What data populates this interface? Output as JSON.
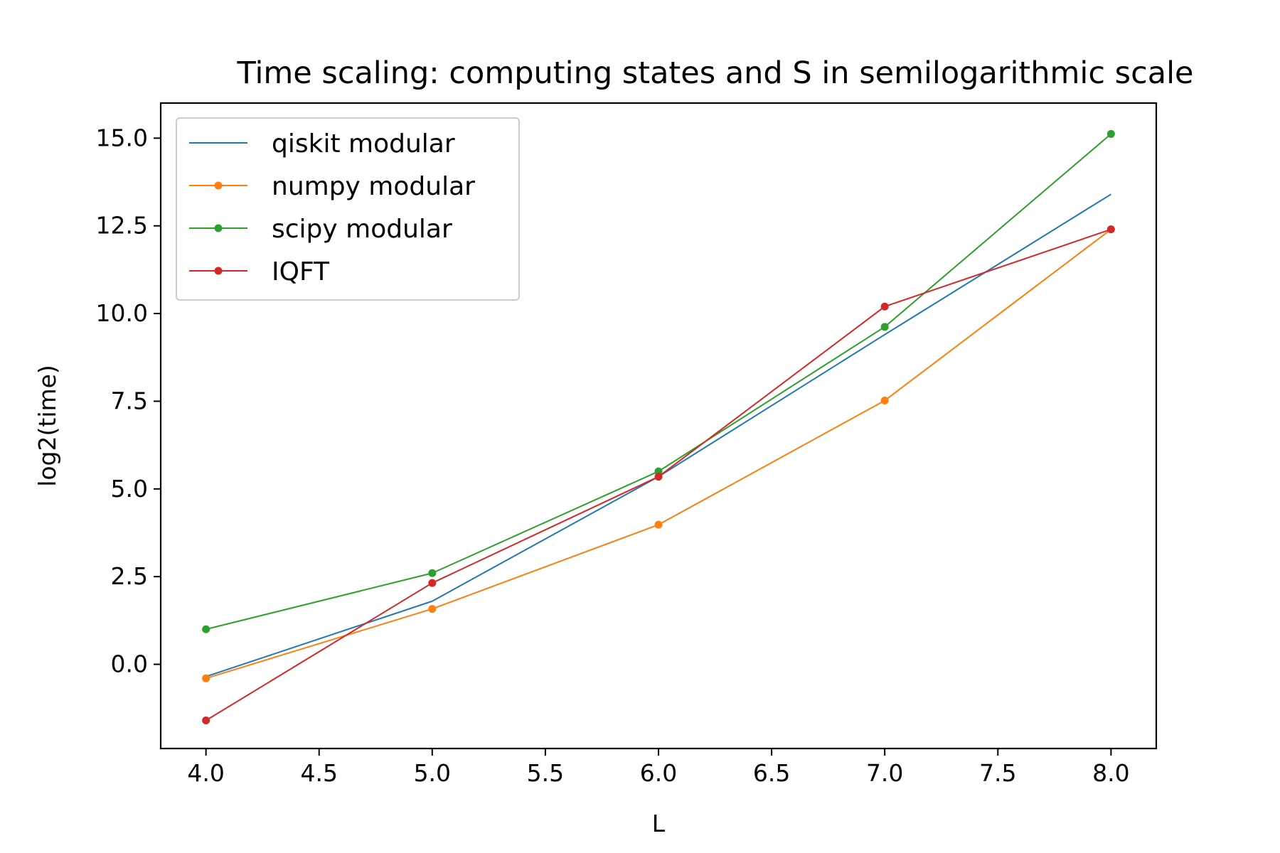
{
  "chart_data": {
    "type": "line",
    "title": "Time scaling: computing states and S in semilogarithmic scale",
    "xlabel": "L",
    "ylabel": "log2(time)",
    "xlim": [
      3.8,
      8.2
    ],
    "ylim": [
      -2.4,
      16.0
    ],
    "x_ticks": [
      4.0,
      4.5,
      5.0,
      5.5,
      6.0,
      6.5,
      7.0,
      7.5,
      8.0
    ],
    "y_ticks": [
      0.0,
      2.5,
      5.0,
      7.5,
      10.0,
      12.5,
      15.0
    ],
    "x_tick_labels": [
      "4.0",
      "4.5",
      "5.0",
      "5.5",
      "6.0",
      "6.5",
      "7.0",
      "7.5",
      "8.0"
    ],
    "y_tick_labels": [
      "0.0",
      "2.5",
      "5.0",
      "7.5",
      "10.0",
      "12.5",
      "15.0"
    ],
    "grid": false,
    "legend_position": "top-left",
    "x": [
      4,
      5,
      6,
      7,
      8
    ],
    "series": [
      {
        "name": "qiskit modular",
        "color": "#1f77b4",
        "markers": false,
        "values": [
          -0.35,
          1.8,
          5.35,
          9.4,
          13.4
        ]
      },
      {
        "name": "numpy modular",
        "color": "#ff7f0e",
        "markers": true,
        "values": [
          -0.4,
          1.58,
          3.98,
          7.52,
          12.4
        ]
      },
      {
        "name": "scipy modular",
        "color": "#2ca02c",
        "markers": true,
        "values": [
          1.0,
          2.6,
          5.5,
          9.62,
          15.12
        ]
      },
      {
        "name": "IQFT",
        "color": "#d62728",
        "markers": true,
        "values": [
          -1.6,
          2.32,
          5.35,
          10.2,
          12.4
        ]
      }
    ]
  }
}
